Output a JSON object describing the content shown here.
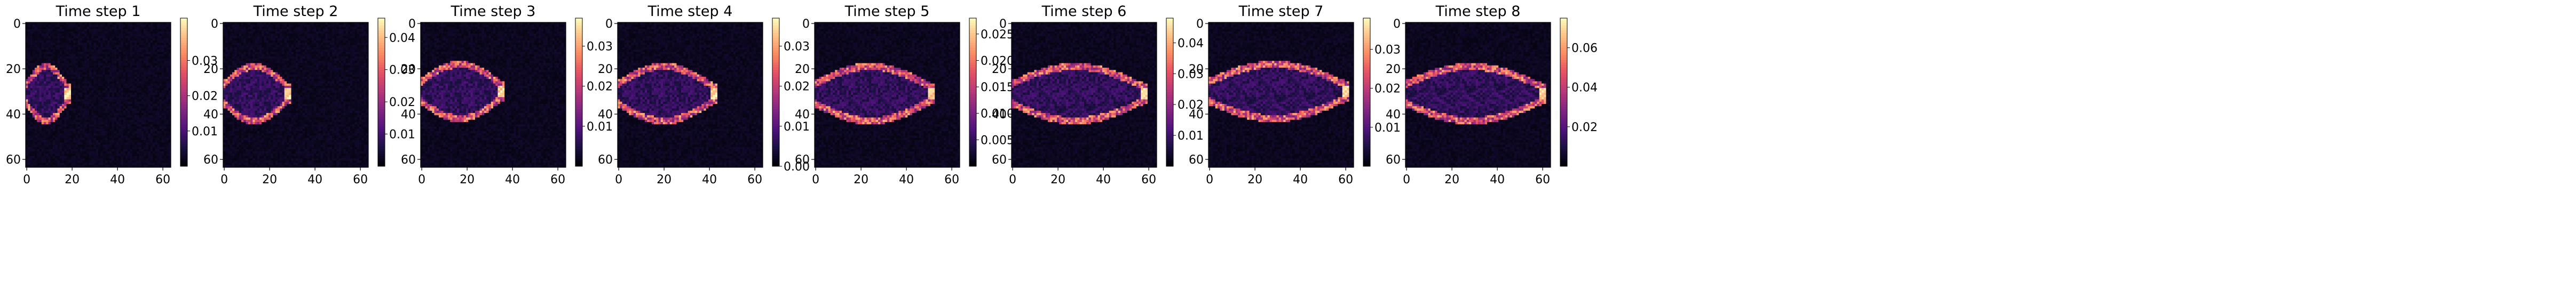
{
  "chart_data": [
    {
      "type": "heatmap",
      "title": "Time step 1",
      "cmap": "magma",
      "size": 64,
      "xticks": [
        0,
        20,
        40,
        60
      ],
      "yticks": [
        0,
        20,
        40,
        60
      ],
      "ylim": [
        64,
        0
      ],
      "colorbar": {
        "min": 0.0,
        "max": 0.042,
        "ticks": [
          0.01,
          0.02,
          0.03
        ],
        "tick_labels": [
          "0.01",
          "0.02",
          "0.03"
        ]
      },
      "front_x": 18,
      "front_y": 31
    },
    {
      "type": "heatmap",
      "title": "Time step 2",
      "cmap": "magma",
      "size": 64,
      "xticks": [
        0,
        20,
        40,
        60
      ],
      "yticks": [
        0,
        20,
        40,
        60
      ],
      "ylim": [
        64,
        0
      ],
      "colorbar": {
        "min": 0.0,
        "max": 0.046,
        "ticks": [
          0.01,
          0.02,
          0.03,
          0.04
        ],
        "tick_labels": [
          "0.01",
          "0.02",
          "0.03",
          "0.04"
        ]
      },
      "front_x": 28,
      "front_y": 31
    },
    {
      "type": "heatmap",
      "title": "Time step 3",
      "cmap": "magma",
      "size": 64,
      "xticks": [
        0,
        20,
        40,
        60
      ],
      "yticks": [
        0,
        20,
        40,
        60
      ],
      "ylim": [
        64,
        0
      ],
      "colorbar": {
        "min": 0.0,
        "max": 0.037,
        "ticks": [
          0.01,
          0.02,
          0.03
        ],
        "tick_labels": [
          "0.01",
          "0.02",
          "0.03"
        ]
      },
      "front_x": 35,
      "front_y": 30
    },
    {
      "type": "heatmap",
      "title": "Time step 4",
      "cmap": "magma",
      "size": 64,
      "xticks": [
        0,
        20,
        40,
        60
      ],
      "yticks": [
        0,
        20,
        40,
        60
      ],
      "ylim": [
        64,
        0
      ],
      "colorbar": {
        "min": 0.0,
        "max": 0.037,
        "ticks": [
          0.0,
          0.01,
          0.02,
          0.03
        ],
        "tick_labels": [
          "0.00",
          "0.01",
          "0.02",
          "0.03"
        ]
      },
      "front_x": 42,
      "front_y": 31
    },
    {
      "type": "heatmap",
      "title": "Time step 5",
      "cmap": "magma",
      "size": 64,
      "xticks": [
        0,
        20,
        40,
        60
      ],
      "yticks": [
        0,
        20,
        40,
        60
      ],
      "ylim": [
        64,
        0
      ],
      "colorbar": {
        "min": 0.0,
        "max": 0.028,
        "ticks": [
          0.005,
          0.01,
          0.015,
          0.02,
          0.025
        ],
        "tick_labels": [
          "0.005",
          "0.010",
          "0.015",
          "0.020",
          "0.025"
        ]
      },
      "front_x": 51,
      "front_y": 31
    },
    {
      "type": "heatmap",
      "title": "Time step 6",
      "cmap": "magma",
      "size": 64,
      "xticks": [
        0,
        20,
        40,
        60
      ],
      "yticks": [
        0,
        20,
        40,
        60
      ],
      "ylim": [
        64,
        0
      ],
      "colorbar": {
        "min": 0.0,
        "max": 0.048,
        "ticks": [
          0.01,
          0.02,
          0.03,
          0.04
        ],
        "tick_labels": [
          "0.01",
          "0.02",
          "0.03",
          "0.04"
        ]
      },
      "front_x": 58,
      "front_y": 31
    },
    {
      "type": "heatmap",
      "title": "Time step 7",
      "cmap": "magma",
      "size": 64,
      "xticks": [
        0,
        20,
        40,
        60
      ],
      "yticks": [
        0,
        20,
        40,
        60
      ],
      "ylim": [
        64,
        0
      ],
      "colorbar": {
        "min": 0.0,
        "max": 0.038,
        "ticks": [
          0.01,
          0.02,
          0.03
        ],
        "tick_labels": [
          "0.01",
          "0.02",
          "0.03"
        ]
      },
      "front_x": 60,
      "front_y": 30
    },
    {
      "type": "heatmap",
      "title": "Time step 8",
      "cmap": "magma",
      "size": 64,
      "xticks": [
        0,
        20,
        40,
        60
      ],
      "yticks": [
        0,
        20,
        40,
        60
      ],
      "ylim": [
        64,
        0
      ],
      "colorbar": {
        "min": 0.0,
        "max": 0.075,
        "ticks": [
          0.02,
          0.04,
          0.06
        ],
        "tick_labels": [
          "0.02",
          "0.04",
          "0.06"
        ]
      },
      "front_x": 60,
      "front_y": 31
    }
  ]
}
